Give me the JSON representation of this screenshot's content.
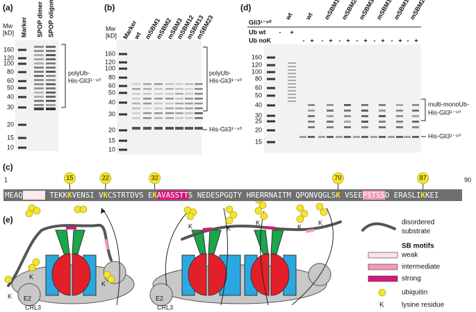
{
  "panel_a": {
    "label": "(a)",
    "mw_label": [
      "Mw",
      "[kD]"
    ],
    "lanes": [
      "Marker",
      "SPOP dimer",
      "SPOP oligomer"
    ],
    "ladder": [
      "160",
      "120",
      "100",
      "80",
      "60",
      "50",
      "40",
      "30",
      "20",
      "15",
      "10"
    ],
    "bracket_label": [
      "polyUb-",
      "His-Gli3¹⁻⁹⁰"
    ]
  },
  "panel_b": {
    "label": "(b)",
    "mw_label": [
      "Mw",
      "[kD]"
    ],
    "lanes": [
      "Marker",
      "wt",
      "mSBM1",
      "mSBM2",
      "mSBM3",
      "mSBM12",
      "mSBM13",
      "mSBM23"
    ],
    "ladder": [
      "160",
      "120",
      "100",
      "80",
      "60",
      "50",
      "40",
      "30",
      "20",
      "15",
      "10"
    ],
    "bracket_label": [
      "polyUb-",
      "His-Gli3¹⁻⁹⁰"
    ],
    "band_label": "His-Gli3¹⁻⁹⁰"
  },
  "panel_c": {
    "label": "(c)",
    "start": "1",
    "end": "90",
    "sites": [
      "15",
      "22",
      "32",
      "70",
      "87"
    ],
    "sequence": [
      {
        "text": "MEAQ",
        "kind": "plain"
      },
      {
        "text": "SHSST",
        "kind": "weak"
      },
      {
        "text": " TEKK",
        "kind": "plain"
      },
      {
        "text": "K",
        "kind": "lysine"
      },
      {
        "text": "VENSI V",
        "kind": "plain"
      },
      {
        "text": "K",
        "kind": "lysine"
      },
      {
        "text": "CSTRTDVS E",
        "kind": "plain"
      },
      {
        "text": "K",
        "kind": "lysine"
      },
      {
        "text": "AVASSTT",
        "kind": "strong"
      },
      {
        "text": "S NEDESPGQTY HRERRNAITM QPQNVQGLS",
        "kind": "plain"
      },
      {
        "text": "K",
        "kind": "lysine"
      },
      {
        "text": " VSEE",
        "kind": "plain"
      },
      {
        "text": "PSTSS",
        "kind": "intermediate"
      },
      {
        "text": "D ERASLI",
        "kind": "plain"
      },
      {
        "text": "K",
        "kind": "lysine"
      },
      {
        "text": "KEI",
        "kind": "plain"
      }
    ]
  },
  "panel_d": {
    "label": "(d)",
    "rows": [
      "Gli3¹⁻⁹⁰",
      "Ub wt",
      "Ub noK"
    ],
    "lanes": [
      "wt",
      "wt",
      "mSBM1",
      "mSBM2",
      "mSBM3",
      "mSBM12",
      "mSBM13",
      "mSBM23"
    ],
    "ub_wt_signs": [
      "-",
      "+"
    ],
    "ub_nok_signs": [
      "-",
      "+",
      "-",
      "+",
      "-",
      "+",
      "-",
      "+",
      "-",
      "+",
      "-",
      "+",
      "-",
      "+"
    ],
    "ladder": [
      "160",
      "120",
      "100",
      "80",
      "60",
      "50",
      "40",
      "30",
      "25",
      "20",
      "15"
    ],
    "bracket_label": [
      "multi-monoUb-",
      "His-Gli3¹⁻⁹⁰"
    ],
    "band_label": "His-Gli3¹⁻⁹⁰"
  },
  "panel_e": {
    "label": "(e)",
    "left": {
      "lysines": [
        "K",
        "K",
        "K"
      ],
      "e2": "E2",
      "crl3": "CRL3"
    },
    "right": {
      "lysines": [
        "K",
        "K",
        "K",
        "K",
        "K"
      ],
      "e2": "E2",
      "crl3": "CRL3"
    },
    "legend": {
      "substrate": [
        "disordered",
        "substrate"
      ],
      "motifs_title": "SB motifs",
      "weak": "weak",
      "intermediate": "intermediate",
      "strong": "strong",
      "ubiquitin": "ubiquitin",
      "lysine_symbol": "K",
      "lysine": "lysine residue"
    }
  }
}
